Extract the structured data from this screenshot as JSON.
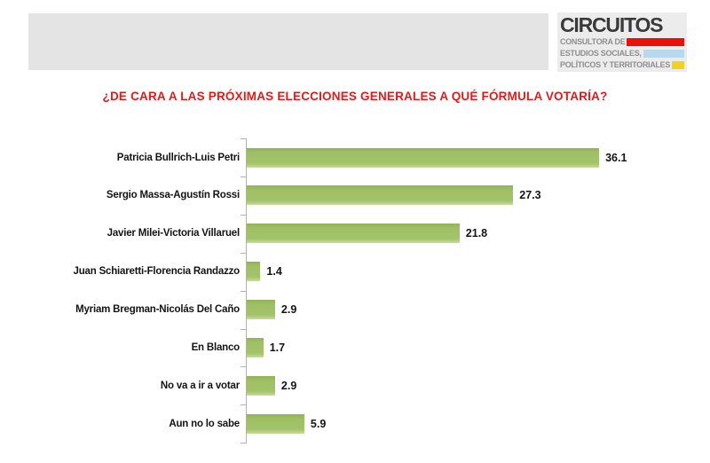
{
  "header": {
    "logo": {
      "title": "CIRCUITOS",
      "line1": "CONSULTORA DE",
      "line2": "ESTUDIOS SOCIALES,",
      "line3": "POLÍTICOS Y TERRITORIALES",
      "bar1_color": "#e8120d",
      "bar2_color": "#b9d8ee",
      "bar3_color": "#f0d321"
    }
  },
  "title": "¿DE CARA A LAS PRÓXIMAS ELECCIONES GENERALES A QUÉ FÓRMULA VOTARÍA?",
  "title_color": "#e21a1a",
  "chart_data": {
    "type": "bar",
    "orientation": "horizontal",
    "title": "¿DE CARA A LAS PRÓXIMAS ELECCIONES GENERALES A QUÉ FÓRMULA VOTARÍA?",
    "categories": [
      "Patricia Bullrich-Luis Petri",
      "Sergio Massa-Agustín Rossi",
      "Javier Milei-Victoria Villaruel",
      "Juan Schiaretti-Florencia Randazzo",
      "Myriam Bregman-Nicolás Del Caño",
      "En Blanco",
      "No va a ir a votar",
      "Aun no lo sabe"
    ],
    "values": [
      36.1,
      27.3,
      21.8,
      1.4,
      2.9,
      1.7,
      2.9,
      5.9
    ],
    "value_labels": [
      "36.1",
      "27.3",
      "21.8",
      "1.4",
      "2.9",
      "1.7",
      "2.9",
      "5.9"
    ],
    "bar_color": "#9fc065",
    "xlim": [
      0,
      40
    ],
    "xlabel": "",
    "ylabel": "",
    "grid": false,
    "legend": false,
    "data_labels_position": "outside-end"
  }
}
